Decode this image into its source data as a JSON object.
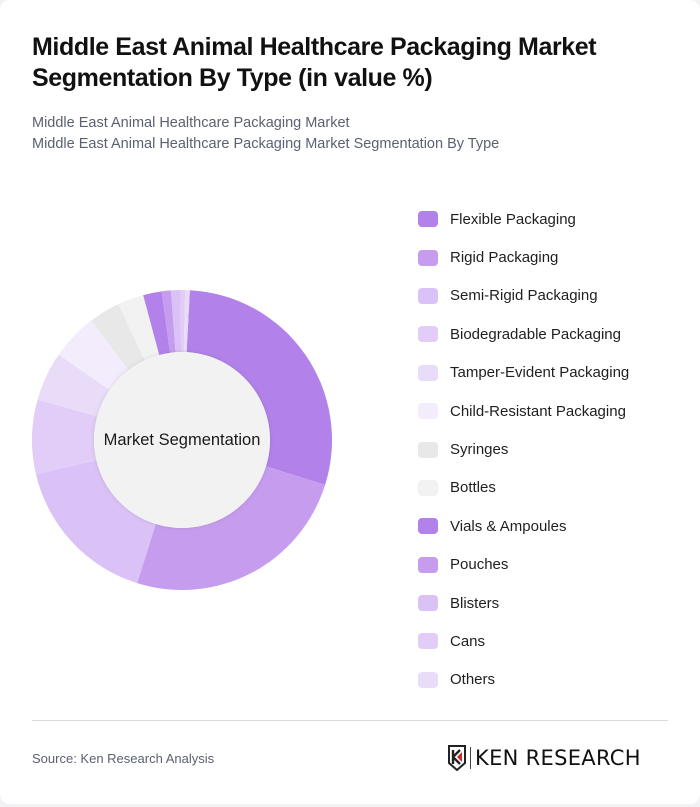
{
  "header": {
    "title": "Middle East Animal Healthcare Packaging Market Segmentation By Type (in value %)",
    "subtitle_line1": "Middle East Animal Healthcare Packaging Market",
    "subtitle_line2": "Middle East Animal Healthcare Packaging Market Segmentation By Type"
  },
  "chart": {
    "center_label": "Market Segmentation"
  },
  "legend": [
    {
      "label": "Flexible Packaging",
      "color": "#b282ea"
    },
    {
      "label": "Rigid Packaging",
      "color": "#c69dee"
    },
    {
      "label": "Semi-Rigid Packaging",
      "color": "#dbc2f6"
    },
    {
      "label": "Biodegradable Packaging",
      "color": "#e1cdf7"
    },
    {
      "label": "Tamper-Evident Packaging",
      "color": "#e9dcf9"
    },
    {
      "label": "Child-Resistant Packaging",
      "color": "#f2ecfc"
    },
    {
      "label": "Syringes",
      "color": "#e8e8e8"
    },
    {
      "label": "Bottles",
      "color": "#f2f2f2"
    },
    {
      "label": "Vials & Ampoules",
      "color": "#b282ea"
    },
    {
      "label": "Pouches",
      "color": "#c69dee"
    },
    {
      "label": "Blisters",
      "color": "#dbc2f6"
    },
    {
      "label": "Cans",
      "color": "#e1cdf7"
    },
    {
      "label": "Others",
      "color": "#e9dcf9"
    }
  ],
  "footer": {
    "source": "Source: Ken Research Analysis",
    "logo_text": "KEN RESEARCH"
  },
  "chart_data": {
    "type": "pie",
    "title": "Middle East Animal Healthcare Packaging Market Segmentation By Type (in value %)",
    "subtitle": "Middle East Animal Healthcare Packaging Market Segmentation By Type",
    "center_label": "Market Segmentation",
    "donut": true,
    "legend_position": "right",
    "categories": [
      "Flexible Packaging",
      "Rigid Packaging",
      "Semi-Rigid Packaging",
      "Biodegradable Packaging",
      "Tamper-Evident Packaging",
      "Child-Resistant Packaging",
      "Syringes",
      "Bottles",
      "Vials & Ampoules",
      "Pouches",
      "Blisters",
      "Cans",
      "Others"
    ],
    "values": [
      29,
      25,
      16.5,
      8,
      5.3,
      5,
      3.4,
      2.8,
      2,
      1,
      1,
      0.5,
      0.5
    ],
    "colors": [
      "#b282ea",
      "#c69dee",
      "#dbc2f6",
      "#e1cdf7",
      "#e9dcf9",
      "#f2ecfc",
      "#e8e8e8",
      "#f2f2f2",
      "#b282ea",
      "#c69dee",
      "#dbc2f6",
      "#e1cdf7",
      "#e9dcf9"
    ],
    "start_angle_deg": 3,
    "source": "Source: Ken Research Analysis"
  }
}
